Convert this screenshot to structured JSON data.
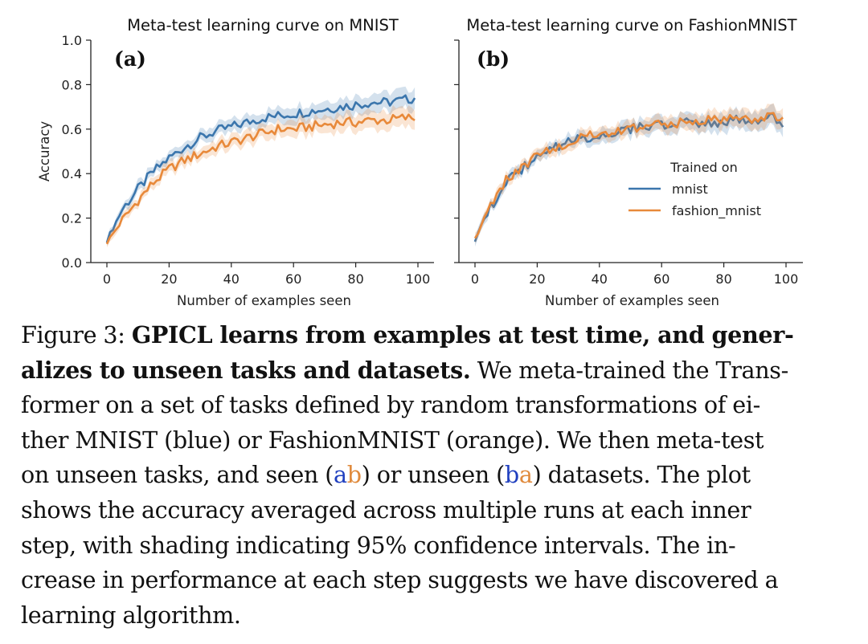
{
  "colors": {
    "mnist": "#3b76ad",
    "fashion_mnist": "#e8893a",
    "ref_blue": "#1f3fbf",
    "ref_orange": "#e08a3c"
  },
  "chart_data": [
    {
      "type": "line",
      "panel": "(a)",
      "title": "Meta-test learning curve on MNIST",
      "xlabel": "Number of examples seen",
      "ylabel": "Accuracy",
      "xlim": [
        0,
        100
      ],
      "ylim": [
        0,
        1
      ],
      "xticks": [
        "0",
        "20",
        "40",
        "60",
        "80",
        "100"
      ],
      "yticks": [
        "0.0",
        "0.2",
        "0.4",
        "0.6",
        "0.8",
        "1.0"
      ],
      "series": [
        {
          "name": "mnist",
          "x": [
            0,
            5,
            10,
            15,
            20,
            25,
            30,
            35,
            40,
            45,
            50,
            55,
            60,
            65,
            70,
            75,
            80,
            85,
            90,
            95,
            99
          ],
          "values": [
            0.1,
            0.24,
            0.33,
            0.41,
            0.47,
            0.52,
            0.56,
            0.59,
            0.61,
            0.63,
            0.65,
            0.66,
            0.67,
            0.68,
            0.69,
            0.7,
            0.71,
            0.72,
            0.72,
            0.73,
            0.74
          ]
        },
        {
          "name": "fashion_mnist",
          "x": [
            0,
            5,
            10,
            15,
            20,
            25,
            30,
            35,
            40,
            45,
            50,
            55,
            60,
            65,
            70,
            75,
            80,
            85,
            90,
            95,
            99
          ],
          "values": [
            0.09,
            0.19,
            0.28,
            0.36,
            0.42,
            0.46,
            0.49,
            0.52,
            0.54,
            0.56,
            0.58,
            0.6,
            0.6,
            0.61,
            0.62,
            0.63,
            0.63,
            0.64,
            0.64,
            0.65,
            0.65
          ]
        }
      ]
    },
    {
      "type": "line",
      "panel": "(b)",
      "title": "Meta-test learning curve on FashionMNIST",
      "xlabel": "Number of examples seen",
      "ylabel": "",
      "xlim": [
        0,
        100
      ],
      "ylim": [
        0,
        1
      ],
      "xticks": [
        "0",
        "20",
        "40",
        "60",
        "80",
        "100"
      ],
      "yticks": [
        "0.0",
        "0.2",
        "0.4",
        "0.6",
        "0.8",
        "1.0"
      ],
      "legend": {
        "title": "Trained on",
        "position": "center-right",
        "entries": [
          "mnist",
          "fashion_mnist"
        ]
      },
      "series": [
        {
          "name": "mnist",
          "x": [
            0,
            5,
            10,
            15,
            20,
            25,
            30,
            35,
            40,
            45,
            50,
            55,
            60,
            65,
            70,
            75,
            80,
            85,
            90,
            95,
            99
          ],
          "values": [
            0.1,
            0.25,
            0.36,
            0.42,
            0.47,
            0.51,
            0.54,
            0.56,
            0.57,
            0.59,
            0.6,
            0.61,
            0.62,
            0.62,
            0.63,
            0.63,
            0.63,
            0.64,
            0.64,
            0.65,
            0.63
          ]
        },
        {
          "name": "fashion_mnist",
          "x": [
            0,
            5,
            10,
            15,
            20,
            25,
            30,
            35,
            40,
            45,
            50,
            55,
            60,
            65,
            70,
            75,
            80,
            85,
            90,
            95,
            99
          ],
          "values": [
            0.1,
            0.26,
            0.37,
            0.43,
            0.48,
            0.52,
            0.54,
            0.56,
            0.58,
            0.59,
            0.6,
            0.61,
            0.62,
            0.63,
            0.63,
            0.64,
            0.64,
            0.65,
            0.65,
            0.66,
            0.64
          ]
        }
      ]
    }
  ],
  "caption": {
    "figure_label": "Figure 3:",
    "lines": [
      [
        {
          "t": "Figure 3:  "
        },
        {
          "t": "GPICL learns from examples at test time, and gener-",
          "style": "bold"
        }
      ],
      [
        {
          "t": "alizes to unseen tasks and datasets.",
          "style": "bold"
        },
        {
          "t": " We meta-trained the Trans-"
        }
      ],
      [
        {
          "t": "former on a set of tasks defined by random transformations of ei-"
        }
      ],
      [
        {
          "t": "ther MNIST (blue) or FashionMNIST (orange). We then meta-test"
        }
      ],
      [
        {
          "t": "on unseen tasks, and seen ("
        },
        {
          "t": "a",
          "style": "blue"
        },
        {
          "t": "b",
          "style": "orange"
        },
        {
          "t": ") or unseen ("
        },
        {
          "t": "b",
          "style": "blue"
        },
        {
          "t": "a",
          "style": "orange"
        },
        {
          "t": ") datasets.  The plot"
        }
      ],
      [
        {
          "t": "shows the accuracy averaged across multiple runs at each inner"
        }
      ],
      [
        {
          "t": "step, with shading indicating 95% confidence intervals.  The in-"
        }
      ],
      [
        {
          "t": "crease in performance at each step suggests we have discovered a"
        }
      ],
      [
        {
          "t": "learning algorithm."
        }
      ]
    ]
  }
}
